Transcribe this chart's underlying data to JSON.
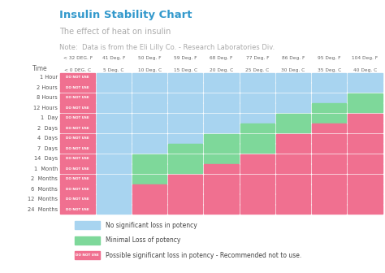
{
  "title": "Insulin Stability Chart",
  "subtitle": "The effect of heat on insulin",
  "note": "Note:  Data is from the Eli Lilly Co. - Research Laboratories Div.",
  "col_headers_line1": [
    "< 32 DEG. F",
    "41 Deg. F",
    "50 Deg. F",
    "59 Deg. F",
    "68 Deg. F",
    "77 Deg. F",
    "86 Deg. F",
    "95 Deg. F",
    "104 Deg. F"
  ],
  "col_headers_line2": [
    "< 0 DEG. C",
    "5 Deg. C",
    "10 Deg. C",
    "15 Deg. C",
    "20 Deg. C",
    "25 Deg. C",
    "30 Deg. C",
    "35 Deg. C",
    "40 Deg. C"
  ],
  "row_labels": [
    "1 Hour",
    "2 Hours",
    "8 Hours",
    "12 Hours",
    "1  Day",
    "2  Days",
    "4  Days",
    "7  Days",
    "14  Days",
    "1  Month",
    "2  Months",
    "6  Months",
    "12  Months",
    "24  Months"
  ],
  "color_blue": "#a8d4f0",
  "color_green": "#7ed89a",
  "color_red": "#f07090",
  "bg_color": "#ffffff",
  "title_color": "#3399cc",
  "grid": [
    [
      "R",
      "B",
      "B",
      "B",
      "B",
      "B",
      "B",
      "B",
      "B"
    ],
    [
      "R",
      "B",
      "B",
      "B",
      "B",
      "B",
      "B",
      "B",
      "B"
    ],
    [
      "R",
      "B",
      "B",
      "B",
      "B",
      "B",
      "B",
      "B",
      "G"
    ],
    [
      "R",
      "B",
      "B",
      "B",
      "B",
      "B",
      "B",
      "G",
      "G"
    ],
    [
      "R",
      "B",
      "B",
      "B",
      "B",
      "B",
      "G",
      "G",
      "R"
    ],
    [
      "R",
      "B",
      "B",
      "B",
      "B",
      "G",
      "G",
      "R",
      "R"
    ],
    [
      "R",
      "B",
      "B",
      "B",
      "G",
      "G",
      "R",
      "R",
      "R"
    ],
    [
      "R",
      "B",
      "B",
      "G",
      "G",
      "G",
      "R",
      "R",
      "R"
    ],
    [
      "R",
      "B",
      "G",
      "G",
      "G",
      "R",
      "R",
      "R",
      "R"
    ],
    [
      "R",
      "B",
      "G",
      "G",
      "R",
      "R",
      "R",
      "R",
      "R"
    ],
    [
      "R",
      "B",
      "G",
      "R",
      "R",
      "R",
      "R",
      "R",
      "R"
    ],
    [
      "R",
      "B",
      "R",
      "R",
      "R",
      "R",
      "R",
      "R",
      "R"
    ],
    [
      "R",
      "B",
      "R",
      "R",
      "R",
      "R",
      "R",
      "R",
      "R"
    ],
    [
      "R",
      "B",
      "R",
      "R",
      "R",
      "R",
      "R",
      "R",
      "R"
    ]
  ]
}
